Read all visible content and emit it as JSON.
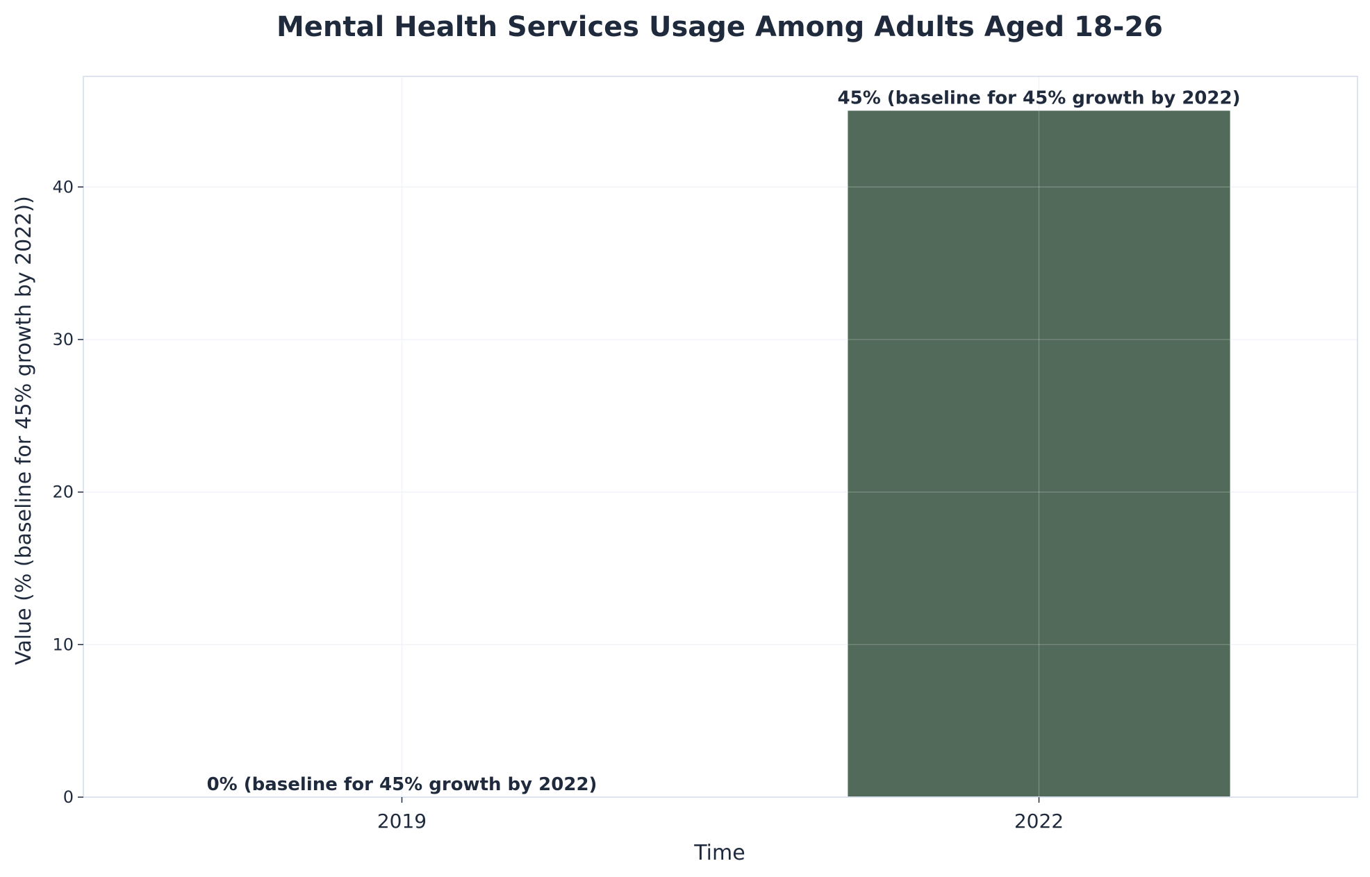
{
  "colors": {
    "bar": "#526a5a",
    "text": "#1f2a3d",
    "axes_frame": "#dde3f0",
    "grid": "#e9edf5",
    "background": "#ffffff"
  },
  "chart_data": {
    "type": "bar",
    "title": "Mental Health Services Usage Among Adults Aged 18-26",
    "xlabel": "Time",
    "ylabel": "Value (% (baseline for 45% growth by 2022))",
    "categories": [
      "2019",
      "2022"
    ],
    "values": [
      0,
      45
    ],
    "data_labels": [
      "0% (baseline for 45% growth by 2022)",
      "45% (baseline for 45% growth by 2022)"
    ],
    "ylim": [
      0,
      47.25
    ],
    "yticks": [
      0,
      10,
      20,
      30,
      40
    ],
    "grid": true,
    "legend": "none"
  }
}
